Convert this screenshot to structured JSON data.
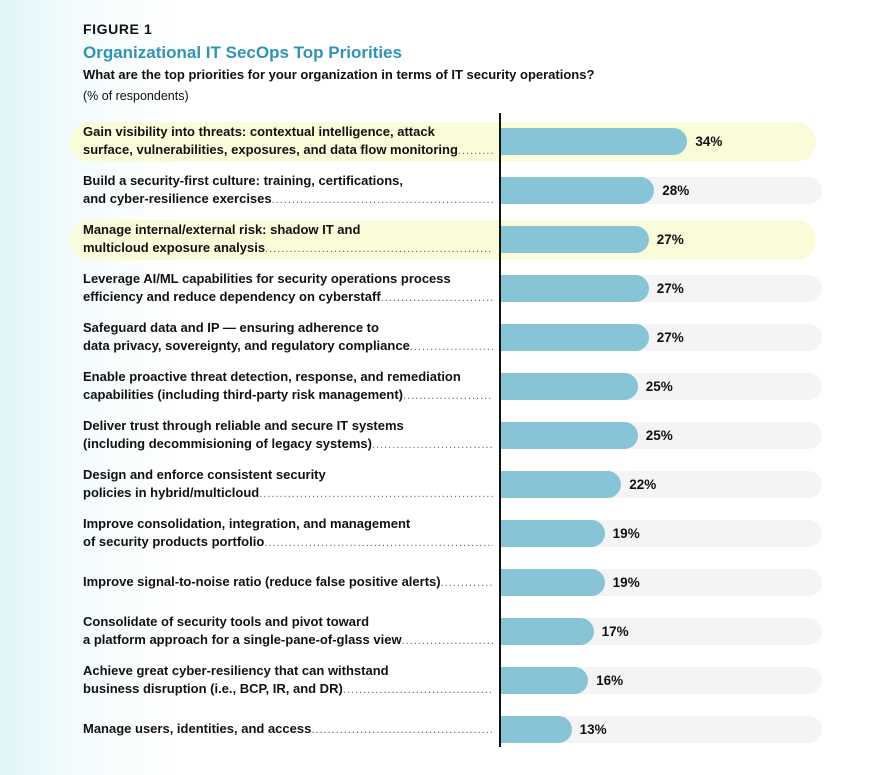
{
  "figure_label": "FIGURE 1",
  "chart_data": {
    "type": "bar",
    "orientation": "horizontal",
    "title": "Organizational IT SecOps Top Priorities",
    "subtitle": "What are the top priorities for your organization in terms of IT security operations?",
    "unit_note": "(% of respondents)",
    "xlim": [
      0,
      45
    ],
    "categories": [
      "Gain visibility into threats: contextual intelligence, attack surface, vulnerabilities, exposures, and data flow monitoring",
      "Build a security-first culture: training, certifications, and cyber-resilience exercises",
      "Manage internal/external risk: shadow IT and multicloud exposure analysis",
      "Leverage AI/ML capabilities for security operations process efficiency and reduce dependency on cyberstaff",
      "Safeguard data and IP — ensuring adherence to data privacy, sovereignty, and regulatory compliance",
      "Enable proactive threat detection, response, and remediation capabilities (including third-party risk management)",
      "Deliver trust through reliable and secure IT systems (including decommisioning of legacy systems)",
      "Design and enforce consistent security policies in hybrid/multicloud",
      "Improve consolidation, integration, and management of security products portfolio",
      "Improve signal-to-noise ratio (reduce false positive alerts)",
      "Consolidate of security tools and pivot toward a platform approach for a single-pane-of-glass view",
      "Achieve great cyber-resiliency that can withstand business disruption (i.e., BCP, IR, and DR)",
      "Manage users, identities, and access"
    ],
    "label_lines": [
      [
        "Gain visibility into threats: contextual intelligence, attack",
        "surface, vulnerabilities, exposures, and data flow monitoring"
      ],
      [
        "Build a security-first culture: training, certifications,",
        "and cyber-resilience exercises"
      ],
      [
        "Manage internal/external risk: shadow IT and",
        "multicloud exposure analysis"
      ],
      [
        "Leverage AI/ML capabilities for security operations process",
        "efficiency and reduce dependency on cyberstaff"
      ],
      [
        "Safeguard data and IP — ensuring adherence to",
        "data privacy, sovereignty, and regulatory compliance"
      ],
      [
        "Enable proactive threat detection, response, and remediation",
        "capabilities (including third-party risk management)"
      ],
      [
        "Deliver trust through reliable and secure IT systems",
        "(including decommisioning of legacy systems)"
      ],
      [
        "Design and enforce consistent security",
        "policies in hybrid/multicloud"
      ],
      [
        "Improve consolidation, integration, and management",
        "of security products portfolio"
      ],
      [
        "Improve signal-to-noise ratio (reduce false positive alerts)"
      ],
      [
        "Consolidate of security tools and pivot toward",
        "a platform approach for a single-pane-of-glass view"
      ],
      [
        "Achieve great cyber-resiliency that can withstand",
        "business disruption (i.e., BCP, IR, and DR)"
      ],
      [
        "Manage users, identities, and access"
      ]
    ],
    "values": [
      34,
      28,
      27,
      27,
      27,
      25,
      25,
      22,
      19,
      19,
      17,
      16,
      13
    ],
    "value_labels": [
      "34%",
      "28%",
      "27%",
      "27%",
      "27%",
      "25%",
      "25%",
      "22%",
      "19%",
      "19%",
      "17%",
      "16%",
      "13%"
    ],
    "highlighted": [
      true,
      false,
      true,
      false,
      false,
      false,
      false,
      false,
      false,
      false,
      false,
      false,
      false
    ],
    "colors": {
      "bar": "#86c4d6",
      "track": "#f4f4f6",
      "highlight": "#fafbd9",
      "title": "#2f93b5"
    }
  }
}
